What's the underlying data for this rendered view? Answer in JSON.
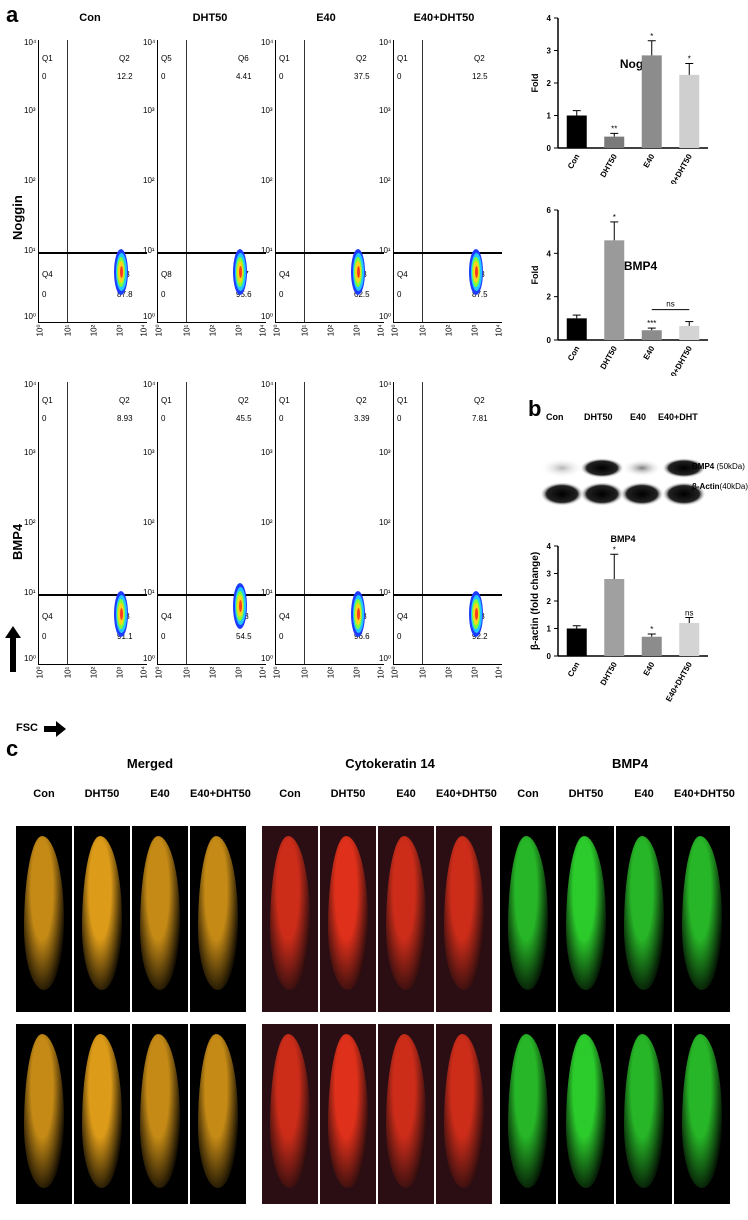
{
  "panel_labels": {
    "a": "a",
    "b": "b",
    "c": "c"
  },
  "flow": {
    "columns": [
      "Con",
      "DHT50",
      "E40",
      "E40+DHT50"
    ],
    "rows": [
      {
        "label": "Noggin",
        "plots": [
          {
            "ul": "Q1",
            "ur": "Q2",
            "ll": "Q4",
            "lr": "Q3",
            "v_ul": "0",
            "v_ur": "12.2",
            "v_ll": "0",
            "v_lr": "87.8"
          },
          {
            "ul": "Q5",
            "ur": "Q6",
            "ll": "Q8",
            "lr": "Q7",
            "v_ul": "0",
            "v_ur": "4.41",
            "v_ll": "0",
            "v_lr": "95.6"
          },
          {
            "ul": "Q1",
            "ur": "Q2",
            "ll": "Q4",
            "lr": "Q3",
            "v_ul": "0",
            "v_ur": "37.5",
            "v_ll": "0",
            "v_lr": "62.5"
          },
          {
            "ul": "Q1",
            "ur": "Q2",
            "ll": "Q4",
            "lr": "Q3",
            "v_ul": "0",
            "v_ur": "12.5",
            "v_ll": "0",
            "v_lr": "87.5"
          }
        ]
      },
      {
        "label": "BMP4",
        "plots": [
          {
            "ul": "Q1",
            "ur": "Q2",
            "ll": "Q4",
            "lr": "Q3",
            "v_ul": "0",
            "v_ur": "8.93",
            "v_ll": "0",
            "v_lr": "91.1"
          },
          {
            "ul": "Q1",
            "ur": "Q2",
            "ll": "Q4",
            "lr": "Q3",
            "v_ul": "0",
            "v_ur": "45.5",
            "v_ll": "0",
            "v_lr": "54.5"
          },
          {
            "ul": "Q1",
            "ur": "Q2",
            "ll": "Q4",
            "lr": "Q3",
            "v_ul": "0",
            "v_ur": "3.39",
            "v_ll": "0",
            "v_lr": "96.6"
          },
          {
            "ul": "Q1",
            "ur": "Q2",
            "ll": "Q4",
            "lr": "Q3",
            "v_ul": "0",
            "v_ur": "7.81",
            "v_ll": "0",
            "v_lr": "92.2"
          }
        ]
      }
    ],
    "y_ticks": [
      "10⁰",
      "10¹",
      "10²",
      "10³",
      "10⁴"
    ],
    "x_ticks": [
      "10⁰",
      "10¹",
      "10²",
      "10³",
      "10⁴"
    ],
    "x_axis_label": "FSC"
  },
  "chart_data": [
    {
      "type": "bar",
      "title": "Noggin",
      "ylabel": "Fold",
      "categories": [
        "Con",
        "DHT50",
        "E40",
        "E40+DHT50"
      ],
      "values": [
        1.0,
        0.35,
        2.85,
        2.25
      ],
      "errors": [
        0.15,
        0.1,
        0.45,
        0.35
      ],
      "annotations": [
        "",
        "**",
        "*",
        "*"
      ],
      "ylim": [
        0,
        4
      ],
      "yticks": [
        0,
        1,
        2,
        3,
        4
      ],
      "colors": [
        "#000000",
        "#7a7a7a",
        "#8c8c8c",
        "#cfcfcf"
      ]
    },
    {
      "type": "bar",
      "title": "BMP4",
      "ylabel": "Fold",
      "categories": [
        "Con",
        "DHT50",
        "E40",
        "E40+DHT50"
      ],
      "values": [
        1.0,
        4.6,
        0.45,
        0.65
      ],
      "errors": [
        0.15,
        0.85,
        0.1,
        0.2
      ],
      "annotations": [
        "",
        "*",
        "***",
        ""
      ],
      "bracket": "ns",
      "ylim": [
        0,
        6
      ],
      "yticks": [
        0,
        2,
        4,
        6
      ],
      "colors": [
        "#000000",
        "#9a9a9a",
        "#8c8c8c",
        "#d4d4d4"
      ]
    },
    {
      "type": "bar",
      "title": "BMP4",
      "ylabel": "β-actin (fold change)",
      "categories": [
        "Con",
        "DHT50",
        "E40",
        "E40+DHT50"
      ],
      "values": [
        1.0,
        2.8,
        0.7,
        1.2
      ],
      "errors": [
        0.1,
        0.9,
        0.1,
        0.2
      ],
      "annotations": [
        "",
        "*",
        "*",
        "ns"
      ],
      "ylim": [
        0,
        4
      ],
      "yticks": [
        0,
        1,
        2,
        3,
        4
      ],
      "colors": [
        "#000000",
        "#a0a0a0",
        "#8c8c8c",
        "#d4d4d4"
      ]
    }
  ],
  "western": {
    "lanes": [
      "Con",
      "DHT50",
      "E40",
      "E40+DHT"
    ],
    "band_labels": [
      "BMP4",
      "(50kDa)",
      "β-Actin",
      "(40kDa)"
    ]
  },
  "panel_c": {
    "groups": [
      {
        "title": "Merged",
        "columns": [
          "Con",
          "DHT50",
          "E40",
          "E40+DHT50"
        ],
        "color": "#e8a31a"
      },
      {
        "title": "Cytokeratin 14",
        "columns": [
          "Con",
          "DHT50",
          "E40",
          "E40+DHT50"
        ],
        "color": "#e8321a"
      },
      {
        "title": "BMP4",
        "columns": [
          "Con",
          "DHT50",
          "E40",
          "E40+DHT50"
        ],
        "color": "#2ed62e"
      }
    ]
  }
}
